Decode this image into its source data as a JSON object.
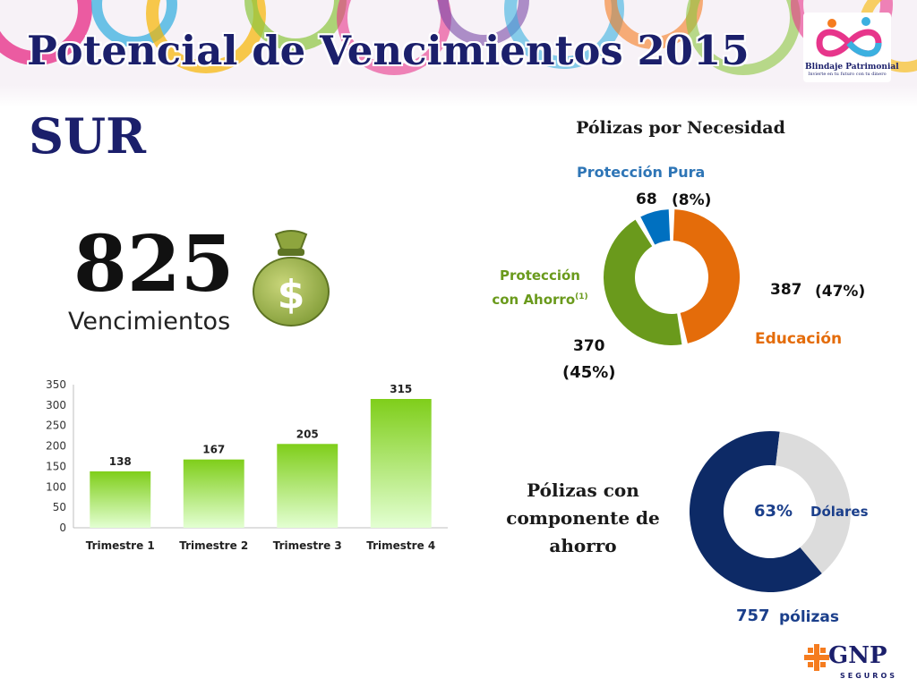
{
  "header": {
    "title": "Potencial de Vencimientos 2015",
    "region": "SUR",
    "logo_name": "Blindaje Patrimonial",
    "logo_tagline": "Invierte en tu futuro con tu dinero"
  },
  "summary": {
    "total": "825",
    "label": "Vencimientos"
  },
  "chart_data": [
    {
      "type": "bar",
      "categories": [
        "Trimestre 1",
        "Trimestre 2",
        "Trimestre 3",
        "Trimestre 4"
      ],
      "values": [
        138,
        167,
        205,
        315
      ],
      "ylim": [
        0,
        350
      ],
      "yticks": [
        0,
        50,
        100,
        150,
        200,
        250,
        300,
        350
      ],
      "data_labels": true,
      "color_top": "#7fce1a",
      "color_bottom": "#e3ffd2",
      "grid": false
    },
    {
      "type": "pie",
      "style": "donut",
      "title": "Pólizas por Necesidad",
      "slices": [
        {
          "label": "Educación",
          "value": 387,
          "percent": "(47%)",
          "color": "#e46c0a"
        },
        {
          "label": "Protección con Ahorro",
          "superscript": "(1)",
          "value": 370,
          "percent": "(45%)",
          "color": "#6a9a1c"
        },
        {
          "label": "Protección Pura",
          "value": 68,
          "percent": "(8%)",
          "color": "#0070c0"
        }
      ]
    },
    {
      "type": "pie",
      "style": "donut",
      "title": "Pólizas con componente de ahorro",
      "slices": [
        {
          "label": "Dólares",
          "value": 63,
          "percent": "63%",
          "color": "#0d2a66"
        },
        {
          "value": 37,
          "color": "#dcdcdc"
        }
      ],
      "total": "757",
      "total_label": "pólizas"
    }
  ],
  "footer": {
    "brand": "GNP",
    "brand_sub": "SEGUROS"
  },
  "colors": {
    "title": "#1b1f6b",
    "label_green": "#6a9a1c",
    "label_blue": "#2e75b6",
    "label_orange": "#e46c0a"
  },
  "icons": [
    "money-bag-icon",
    "blindaje-logo-icon",
    "gnp-logo-icon"
  ]
}
